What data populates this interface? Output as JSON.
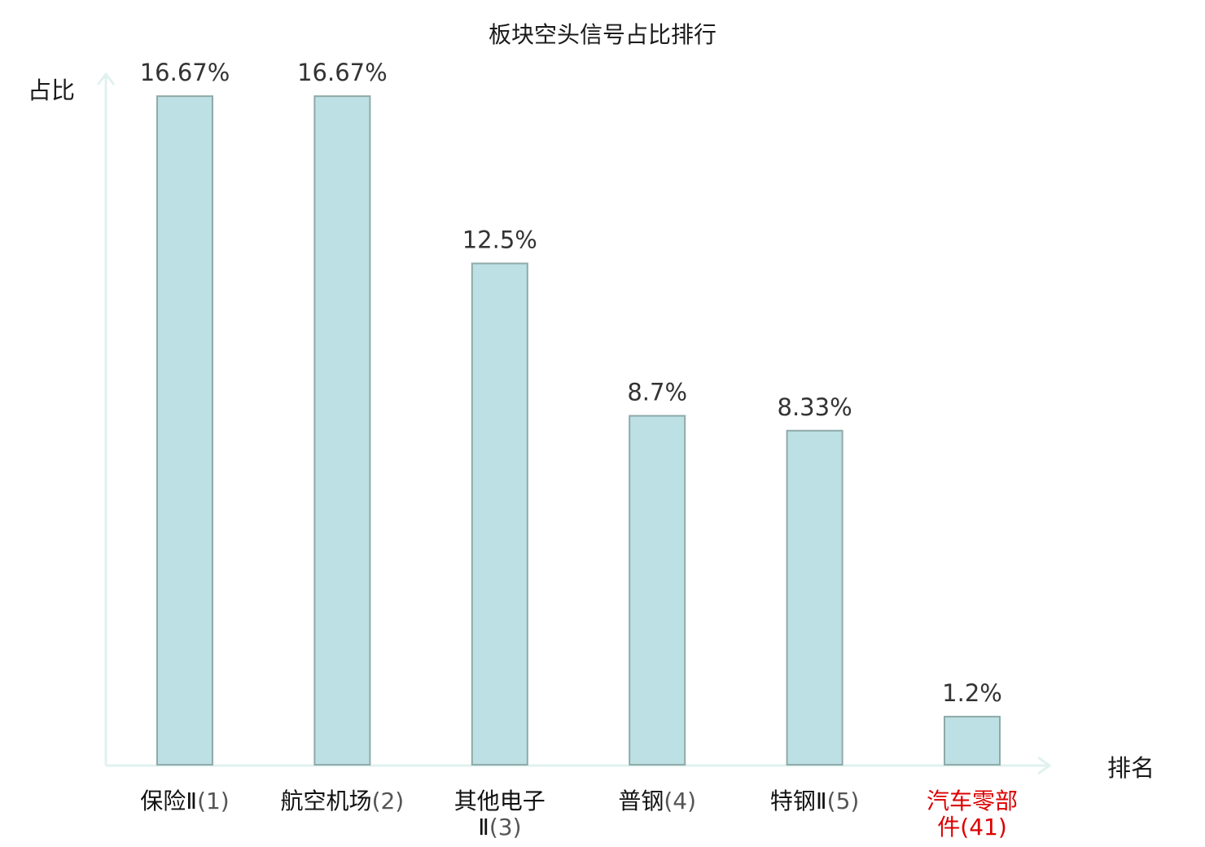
{
  "chart_data": {
    "type": "bar",
    "title": "板块空头信号占比排行",
    "xlabel": "排名",
    "ylabel": "占比",
    "categories": [
      {
        "lines": [
          {
            "name": "保险Ⅱ",
            "suffix": "(1)"
          }
        ],
        "highlight": false
      },
      {
        "lines": [
          {
            "name": "航空机场",
            "suffix": "(2)"
          }
        ],
        "highlight": false
      },
      {
        "lines": [
          {
            "name": "其他电子",
            "suffix": ""
          },
          {
            "name": "Ⅱ",
            "suffix": "(3)"
          }
        ],
        "highlight": false
      },
      {
        "lines": [
          {
            "name": "普钢",
            "suffix": "(4)"
          }
        ],
        "highlight": false
      },
      {
        "lines": [
          {
            "name": "特钢Ⅱ",
            "suffix": "(5)"
          }
        ],
        "highlight": false
      },
      {
        "lines": [
          {
            "name": "汽车零部",
            "suffix": ""
          },
          {
            "name": "件",
            "suffix": "(41)"
          }
        ],
        "highlight": true
      }
    ],
    "values": [
      16.67,
      16.67,
      12.5,
      8.7,
      8.33,
      1.2
    ],
    "value_labels": [
      "16.67%",
      "16.67%",
      "12.5%",
      "8.7%",
      "8.33%",
      "1.2%"
    ],
    "ylim": [
      0,
      17.2
    ],
    "grid": false,
    "colors": {
      "bar_fill": "#bce0e3",
      "bar_stroke": "#8faaa9",
      "axis": "#e0f2ef",
      "highlight_text": "#dd0000",
      "normal_text": "#111111",
      "suffix_text": "#555555"
    }
  }
}
